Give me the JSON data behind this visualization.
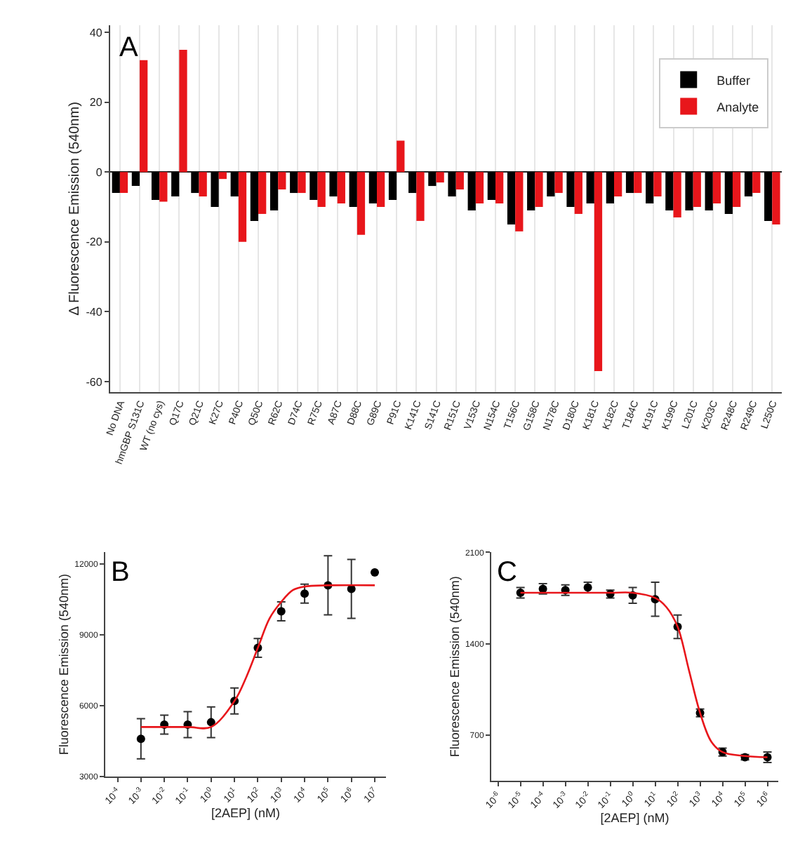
{
  "chart_data": [
    {
      "type": "bar",
      "title": "A",
      "ylabel": "Δ Fluorescence Emission (540nm)",
      "categories": [
        "No DNA",
        "hmGBP S131C",
        "WT (no cys)",
        "Q17C",
        "Q21C",
        "K27C",
        "P40C",
        "Q50C",
        "R62C",
        "D74C",
        "R75C",
        "A87C",
        "D88C",
        "G89C",
        "P91C",
        "K141C",
        "S141C",
        "R151C",
        "V153C",
        "N154C",
        "T156C",
        "G158C",
        "N178C",
        "D180C",
        "K181C",
        "K182C",
        "T184C",
        "K191C",
        "K199C",
        "L201C",
        "K203C",
        "R248C",
        "R249C",
        "L250C"
      ],
      "series": [
        {
          "name": "Buffer",
          "color": "#000000",
          "values": [
            -6,
            -4,
            -8,
            -7,
            -6,
            -10,
            -7,
            -14,
            -11,
            -6,
            -8,
            -7,
            -10,
            -9,
            -8,
            -6,
            -4,
            -7,
            -11,
            -8,
            -15,
            -11,
            -7,
            -10,
            -9,
            -9,
            -6,
            -9,
            -11,
            -11,
            -11,
            -12,
            -7,
            -14
          ]
        },
        {
          "name": "Analyte",
          "color": "#e8161b",
          "values": [
            -6,
            32,
            -8.5,
            35,
            -7,
            -2,
            -20,
            -12,
            -5,
            -6,
            -10,
            -9,
            -18,
            -10,
            9,
            -14,
            -3,
            -5,
            -9,
            -9,
            -17,
            -10,
            -6,
            -12,
            -57,
            -7,
            -6,
            -7,
            -13,
            -10,
            -9,
            -10,
            -6,
            -15
          ]
        }
      ],
      "ylim": [
        -63,
        42
      ],
      "yticks": [
        -60,
        -40,
        -20,
        0,
        20,
        40
      ],
      "grid": "x",
      "legend": "top right"
    },
    {
      "type": "scatter",
      "title": "B",
      "ylabel": "Fluorescence Emission (540nm)",
      "xlabel": "[2AEP] (nM)",
      "log": "x",
      "series": [
        {
          "type": "scatter",
          "color": "#000000",
          "marker": "circle",
          "x": [
            0.001,
            0.01,
            0.1,
            1,
            10,
            100,
            1000,
            10000,
            100000,
            1000000,
            10000000
          ],
          "values": [
            4600,
            5200,
            5200,
            5300,
            6200,
            8450,
            10000,
            10750,
            11100,
            10950,
            11650
          ],
          "errors": [
            850,
            400,
            550,
            650,
            550,
            400,
            400,
            400,
            1250,
            1250,
            null
          ]
        },
        {
          "type": "line",
          "color": "#e8161b",
          "marker": "none",
          "x": [
            0.001,
            0.1,
            1,
            10,
            31.6,
            100,
            316,
            1000,
            3160,
            10000,
            100000,
            10000000
          ],
          "values": [
            5100,
            5100,
            5100,
            6200,
            7200,
            8450,
            9700,
            10400,
            10900,
            11050,
            11100,
            11100
          ]
        }
      ],
      "xlim": [
        3e-05,
        30000000
      ],
      "xticks": [
        {
          "value": 0.0001,
          "label": "10$^{-4}$"
        },
        {
          "value": 0.001,
          "label": "10$^{-3}$"
        },
        {
          "value": 0.01,
          "label": "10$^{-2}$"
        },
        {
          "value": 0.1,
          "label": "10$^{-1}$"
        },
        {
          "value": 1,
          "label": "10$^{0}$"
        },
        {
          "value": 10,
          "label": "10$^{1}$"
        },
        {
          "value": 100,
          "label": "10$^{2}$"
        },
        {
          "value": 1000,
          "label": "10$^{3}$"
        },
        {
          "value": 10000,
          "label": "10$^{4}$"
        },
        {
          "value": 100000,
          "label": "10$^{5}$"
        },
        {
          "value": 1000000,
          "label": "10$^{6}$"
        },
        {
          "value": 10000000,
          "label": "10$^{7}$"
        }
      ],
      "ylim": [
        3000,
        12500
      ],
      "yticks": [
        3000,
        6000,
        9000,
        12000
      ]
    },
    {
      "type": "scatter",
      "title": "C",
      "ylabel": "Fluorescence Emission (540nm)",
      "xlabel": "[2AEP] (nM)",
      "log": "x",
      "series": [
        {
          "type": "scatter",
          "color": "#000000",
          "marker": "circle",
          "x": [
            1e-05,
            0.0001,
            0.001,
            0.01,
            0.1,
            1,
            10,
            100,
            1000,
            10000,
            100000,
            1000000
          ],
          "values": [
            1790,
            1820,
            1810,
            1830,
            1780,
            1770,
            1740,
            1530,
            870,
            570,
            530,
            530
          ],
          "errors": [
            40,
            40,
            40,
            40,
            30,
            60,
            130,
            90,
            30,
            30,
            20,
            40
          ]
        },
        {
          "type": "line",
          "color": "#e8161b",
          "x": [
            1e-05,
            0.1,
            1,
            10,
            31.6,
            100,
            316,
            1000,
            3160,
            10000,
            100000,
            1000000
          ],
          "values": [
            1790,
            1790,
            1790,
            1750,
            1680,
            1530,
            1200,
            870,
            650,
            570,
            540,
            530
          ]
        }
      ],
      "xlim": [
        5e-07,
        3000000
      ],
      "xticks": [
        {
          "value": 1e-06,
          "label": "10$^{-6}$"
        },
        {
          "value": 1e-05,
          "label": "10$^{-5}$"
        },
        {
          "value": 0.0001,
          "label": "10$^{-4}$"
        },
        {
          "value": 0.001,
          "label": "10$^{-3}$"
        },
        {
          "value": 0.01,
          "label": "10$^{-2}$"
        },
        {
          "value": 0.1,
          "label": "10$^{-1}$"
        },
        {
          "value": 1,
          "label": "10$^{0}$"
        },
        {
          "value": 10,
          "label": "10$^{1}$"
        },
        {
          "value": 100,
          "label": "10$^{2}$"
        },
        {
          "value": 1000,
          "label": "10$^{3}$"
        },
        {
          "value": 10000,
          "label": "10$^{4}$"
        },
        {
          "value": 100000,
          "label": "10$^{5}$"
        },
        {
          "value": 1000000,
          "label": "10$^{6}$"
        }
      ],
      "ylim": [
        350,
        2100
      ],
      "yticks": [
        700,
        1400,
        2100
      ]
    }
  ]
}
